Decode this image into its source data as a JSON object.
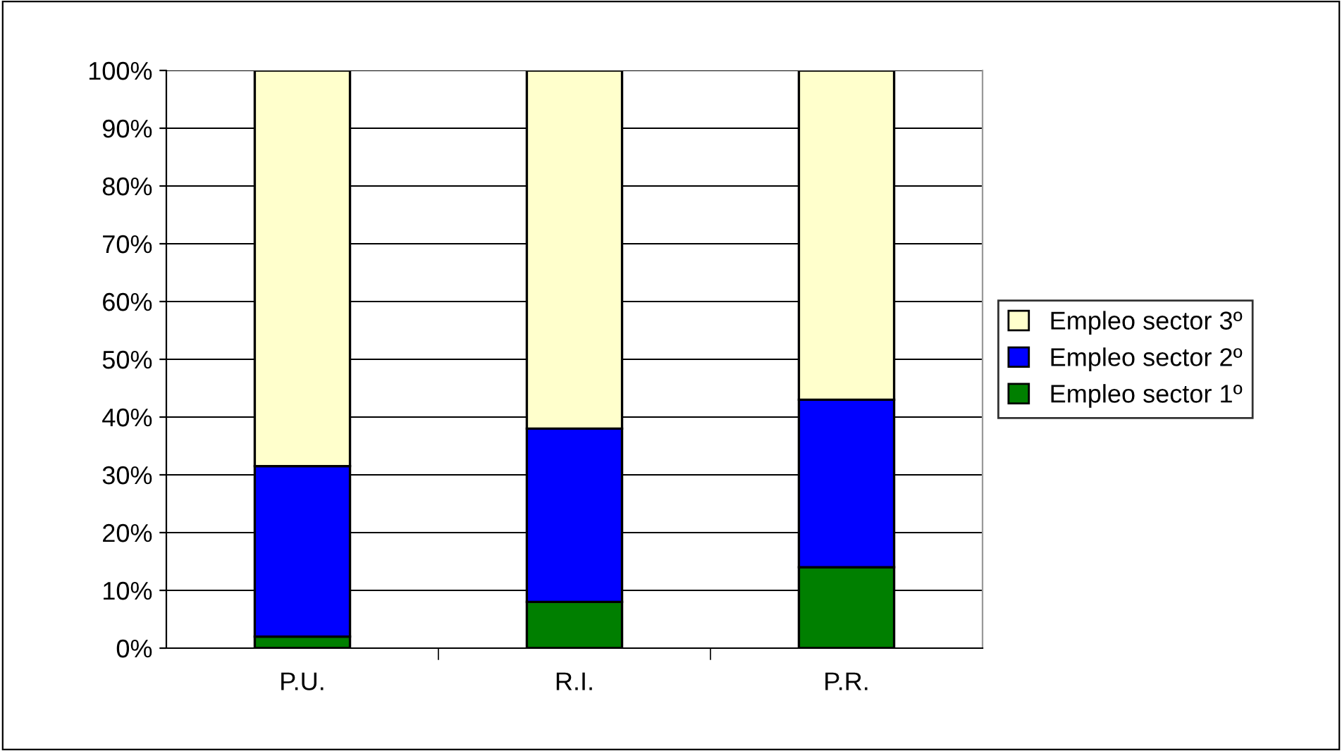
{
  "chart_data": {
    "type": "bar",
    "stacked": true,
    "categories": [
      "P.U.",
      "R.I.",
      "P.R."
    ],
    "series": [
      {
        "name": "Empleo sector 1º",
        "color": "#007f00",
        "values": [
          2,
          8,
          14
        ]
      },
      {
        "name": "Empleo sector 2º",
        "color": "#0000ff",
        "values": [
          29.5,
          30,
          29
        ]
      },
      {
        "name": "Empleo sector 3º",
        "color": "#ffffcc",
        "values": [
          68.5,
          62,
          57
        ]
      }
    ],
    "ylim": [
      0,
      100
    ],
    "yticks": [
      {
        "value": 0,
        "label": "0%"
      },
      {
        "value": 10,
        "label": "10%"
      },
      {
        "value": 20,
        "label": "20%"
      },
      {
        "value": 30,
        "label": "30%"
      },
      {
        "value": 40,
        "label": "40%"
      },
      {
        "value": 50,
        "label": "50%"
      },
      {
        "value": 60,
        "label": "60%"
      },
      {
        "value": 70,
        "label": "70%"
      },
      {
        "value": 80,
        "label": "80%"
      },
      {
        "value": 90,
        "label": "90%"
      },
      {
        "value": 100,
        "label": "100%"
      }
    ],
    "grid": "y",
    "legend": "right"
  }
}
